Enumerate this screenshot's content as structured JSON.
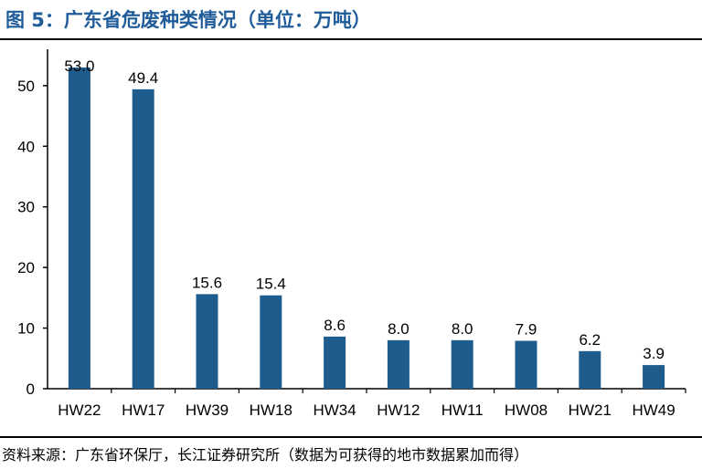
{
  "header": {
    "title": "图 5：广东省危废种类情况（单位：万吨）"
  },
  "footer": {
    "source": "资料来源：广东省环保厅，长江证券研究所（数据为可获得的地市数据累加而得）"
  },
  "chart_data": {
    "type": "bar",
    "title": "图 5：广东省危废种类情况（单位：万吨）",
    "xlabel": "",
    "ylabel": "",
    "categories": [
      "HW22",
      "HW17",
      "HW39",
      "HW18",
      "HW34",
      "HW12",
      "HW11",
      "HW08",
      "HW21",
      "HW49"
    ],
    "values": [
      53.0,
      49.4,
      15.6,
      15.4,
      8.6,
      8.0,
      8.0,
      7.9,
      6.2,
      3.9
    ],
    "data_labels": [
      "53.0",
      "49.4",
      "15.6",
      "15.4",
      "8.6",
      "8.0",
      "8.0",
      "7.9",
      "6.2",
      "3.9"
    ],
    "ylim": [
      0,
      56
    ],
    "yticks": [
      0,
      10,
      20,
      30,
      40,
      50
    ],
    "grid": false,
    "legend": "none",
    "bar_color": "#1f5c8e"
  }
}
